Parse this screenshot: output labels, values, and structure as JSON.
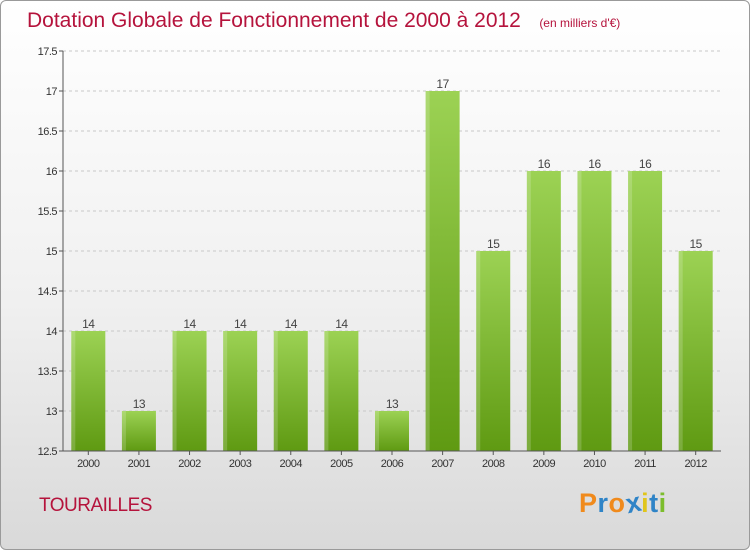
{
  "header": {
    "title": "Dotation Globale de Fonctionnement de 2000 à 2012",
    "unit": "(en milliers d'€)"
  },
  "footer": {
    "commune": "TOURAILLES",
    "logo": {
      "letters": [
        "P",
        "r",
        "o",
        "x",
        "i",
        "t",
        "i"
      ],
      "colors": [
        "#f08a1c",
        "#2f84c7",
        "#f08a1c",
        "#2f84c7",
        "#e0c51c",
        "#2f84c7",
        "#7cbd2c"
      ]
    }
  },
  "colors": {
    "bar_top": "#9cd254",
    "bar_bottom": "#5f9a12",
    "title": "#b5133c",
    "grid": "#c8c8c8",
    "axis": "#555555"
  },
  "chart_data": {
    "type": "bar",
    "categories": [
      "2000",
      "2001",
      "2002",
      "2003",
      "2004",
      "2005",
      "2006",
      "2007",
      "2008",
      "2009",
      "2010",
      "2011",
      "2012"
    ],
    "values": [
      14,
      13,
      14,
      14,
      14,
      14,
      13,
      17,
      15,
      16,
      16,
      16,
      15
    ],
    "data_labels": [
      "14",
      "13",
      "14",
      "14",
      "14",
      "14",
      "13",
      "17",
      "15",
      "16",
      "16",
      "16",
      "15"
    ],
    "ylim": [
      12.5,
      17.5
    ],
    "yticks": [
      "12.5",
      "13",
      "13.5",
      "14",
      "14.5",
      "15",
      "15.5",
      "16",
      "16.5",
      "17",
      "17.5"
    ],
    "grid": "horizontal dashed"
  }
}
